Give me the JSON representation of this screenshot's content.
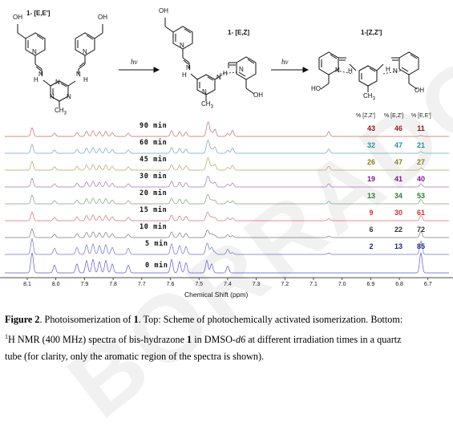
{
  "scheme": {
    "compound_labels": [
      "1- [E,E']",
      "1- [E,Z]",
      "1-[Z,Z']"
    ],
    "arrow_labels": [
      "hν",
      "hν"
    ],
    "column_headers": [
      "% [Z,Z']",
      "% [E,Z']",
      "% [E,E']"
    ]
  },
  "spectra": [
    {
      "time": "90 min",
      "color": "#8b1a1a",
      "zz": "43",
      "ez": "46",
      "ee": "11"
    },
    {
      "time": "60 min",
      "color": "#2e8b9a",
      "zz": "32",
      "ez": "47",
      "ee": "21"
    },
    {
      "time": "45 min",
      "color": "#8b7a1a",
      "zz": "26",
      "ez": "47",
      "ee": "27"
    },
    {
      "time": "30 min",
      "color": "#7a1a8b",
      "zz": "19",
      "ez": "41",
      "ee": "40"
    },
    {
      "time": "20 min",
      "color": "#2e7d32",
      "zz": "13",
      "ez": "34",
      "ee": "53"
    },
    {
      "time": "15 min",
      "color": "#d32f2f",
      "zz": "9",
      "ez": "30",
      "ee": "61"
    },
    {
      "time": "10 min",
      "color": "#333333",
      "zz": "6",
      "ez": "22",
      "ee": "72"
    },
    {
      "time": "5 min",
      "color": "#1a237e",
      "zz": "2",
      "ez": "13",
      "ee": "85"
    },
    {
      "time": "0 min",
      "color": "#111111",
      "zz": "",
      "ez": "",
      "ee": ""
    }
  ],
  "axis": {
    "ticks": [
      "8.1",
      "8.0",
      "7.9",
      "7.8",
      "7.7",
      "7.6",
      "7.5",
      "7.4",
      "7.3",
      "7.2",
      "7.1",
      "7.0",
      "6.9",
      "6.8",
      "6.7"
    ],
    "label": "Chemical Shift  (ppm)"
  },
  "caption": {
    "label": "Figure 2",
    "line1_a": ". Photoisomerization of ",
    "line1_b": ". Top: Scheme of photochemically activated isomerization. Bottom:",
    "compound": "1",
    "line2_sup": "1",
    "line2_a": "H NMR (400 MHz) spectra of bis-hydrazone ",
    "line2_b": " in DMSO-",
    "line2_c": " at different irradiation times in a quartz",
    "d6": "d6",
    "line3": "tube (for clarity, only the aromatic region of the spectra is shown)."
  },
  "watermark": "BORRADOR",
  "colors": {
    "traces": [
      "#c46a6a",
      "#6aa7b0",
      "#b5a462",
      "#a473b0",
      "#73a877",
      "#d96b6b",
      "#777777",
      "#6b74c4",
      "#5a5ad0"
    ]
  }
}
